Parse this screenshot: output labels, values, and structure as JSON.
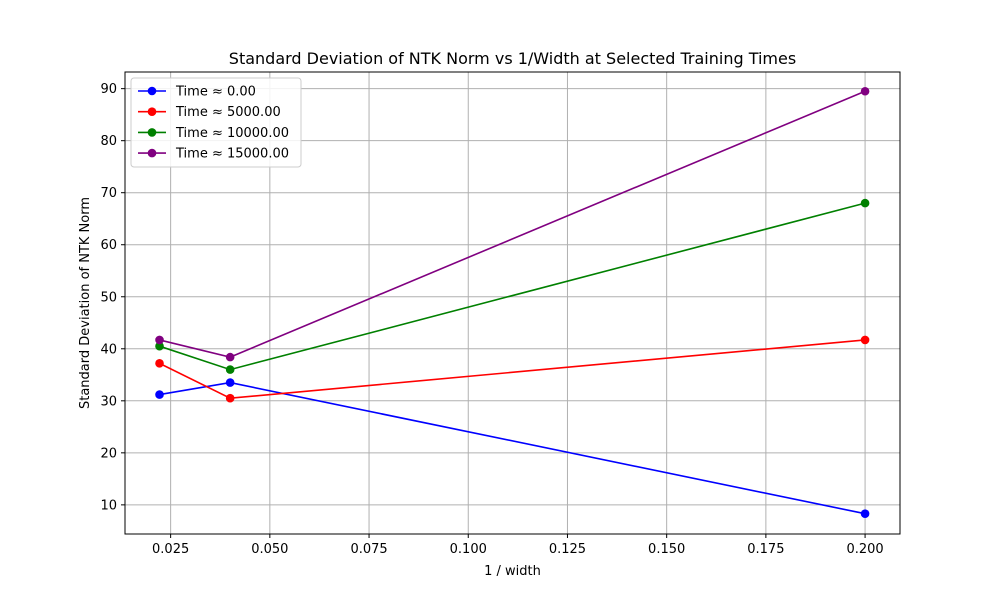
{
  "chart_data": {
    "type": "line",
    "title": "Standard Deviation of NTK Norm vs 1/Width at Selected Training Times",
    "xlabel": "1 / width",
    "ylabel": "Standard Deviation of NTK Norm",
    "xlim": [
      0.0135,
      0.2088
    ],
    "ylim": [
      4.4,
      93.2
    ],
    "xticks": [
      0.025,
      0.05,
      0.075,
      0.1,
      0.125,
      0.15,
      0.175,
      0.2
    ],
    "xtick_labels": [
      "0.025",
      "0.050",
      "0.075",
      "0.100",
      "0.125",
      "0.150",
      "0.175",
      "0.200"
    ],
    "yticks": [
      10,
      20,
      30,
      40,
      50,
      60,
      70,
      80,
      90
    ],
    "ytick_labels": [
      "10",
      "20",
      "30",
      "40",
      "50",
      "60",
      "70",
      "80",
      "90"
    ],
    "grid": true,
    "legend_position": "top-left",
    "x": [
      0.0222,
      0.04,
      0.2
    ],
    "series": [
      {
        "name": "Time ≈ 0.00",
        "color": "#0000ff",
        "values": [
          31.2,
          33.5,
          8.3
        ]
      },
      {
        "name": "Time ≈ 5000.00",
        "color": "#ff0000",
        "values": [
          37.2,
          30.5,
          41.7
        ]
      },
      {
        "name": "Time ≈ 10000.00",
        "color": "#008000",
        "values": [
          40.5,
          36.0,
          68.0
        ]
      },
      {
        "name": "Time ≈ 15000.00",
        "color": "#800080",
        "values": [
          41.7,
          38.4,
          89.5
        ]
      }
    ]
  }
}
